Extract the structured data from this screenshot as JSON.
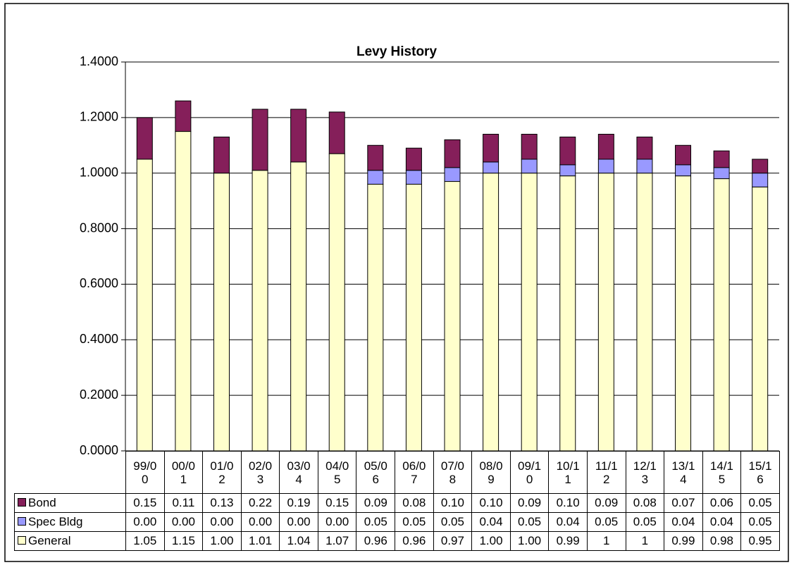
{
  "chart_data": {
    "type": "stacked_bar",
    "title": "Levy History",
    "categories": [
      "99/00",
      "00/01",
      "01/02",
      "02/03",
      "03/04",
      "04/05",
      "05/06",
      "06/07",
      "07/08",
      "08/09",
      "09/10",
      "10/11",
      "11/12",
      "12/13",
      "13/14",
      "14/15",
      "15/16"
    ],
    "series": [
      {
        "name": "General",
        "color": "#ffffcc",
        "values": [
          1.05,
          1.15,
          1.0,
          1.01,
          1.04,
          1.07,
          0.96,
          0.96,
          0.97,
          1.0,
          1.0,
          0.99,
          1,
          1,
          0.99,
          0.98,
          0.95
        ],
        "value_labels": [
          "1.05",
          "1.15",
          "1.00",
          "1.01",
          "1.04",
          "1.07",
          "0.96",
          "0.96",
          "0.97",
          "1.00",
          "1.00",
          "0.99",
          "1",
          "1",
          "0.99",
          "0.98",
          "0.95"
        ]
      },
      {
        "name": "Spec Bldg",
        "color": "#9999ff",
        "values": [
          0,
          0,
          0,
          0,
          0,
          0,
          0.05,
          0.05,
          0.05,
          0.04,
          0.05,
          0.04,
          0.05,
          0.05,
          0.04,
          0.04,
          0.05
        ],
        "value_labels": [
          "0.00",
          "0.00",
          "0.00",
          "0.00",
          "0.00",
          "0.00",
          "0.05",
          "0.05",
          "0.05",
          "0.04",
          "0.05",
          "0.04",
          "0.05",
          "0.05",
          "0.04",
          "0.04",
          "0.05"
        ]
      },
      {
        "name": "Bond",
        "color": "#851f5a",
        "values": [
          0.15,
          0.11,
          0.13,
          0.22,
          0.19,
          0.15,
          0.09,
          0.08,
          0.1,
          0.1,
          0.09,
          0.1,
          0.09,
          0.08,
          0.07,
          0.06,
          0.05
        ],
        "value_labels": [
          "0.15",
          "0.11",
          "0.13",
          "0.22",
          "0.19",
          "0.15",
          "0.09",
          "0.08",
          "0.10",
          "0.10",
          "0.09",
          "0.10",
          "0.09",
          "0.08",
          "0.07",
          "0.06",
          "0.05"
        ]
      }
    ],
    "ylim": [
      0,
      1.4
    ],
    "yticks": [
      {
        "value": 0,
        "label": "0.0000"
      },
      {
        "value": 0.2,
        "label": "0.2000"
      },
      {
        "value": 0.4,
        "label": "0.4000"
      },
      {
        "value": 0.6,
        "label": "0.6000"
      },
      {
        "value": 0.8,
        "label": "0.8000"
      },
      {
        "value": 1.0,
        "label": "1.0000"
      },
      {
        "value": 1.2,
        "label": "1.2000"
      },
      {
        "value": 1.4,
        "label": "1.4000"
      }
    ],
    "grid": true
  }
}
